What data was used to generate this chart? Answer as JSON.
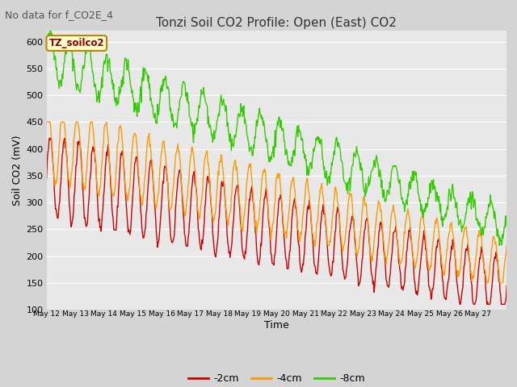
{
  "title": "Tonzi Soil CO2 Profile: Open (East) CO2",
  "subtitle": "No data for f_CO2E_4",
  "ylabel": "Soil CO2 (mV)",
  "xlabel": "Time",
  "watermark": "TZ_soilco2",
  "ylim": [
    100,
    620
  ],
  "yticks": [
    100,
    150,
    200,
    250,
    300,
    350,
    400,
    450,
    500,
    550,
    600
  ],
  "fig_bg": "#d4d4d4",
  "plot_bg": "#e8e8e8",
  "grid_color": "#ffffff",
  "line_colors": {
    "2cm": "#cc0000",
    "4cm": "#ff9900",
    "8cm": "#33cc00"
  },
  "line_width": 1.0,
  "x_tick_labels": [
    "May 12",
    "May 13",
    "May 14",
    "May 15",
    "May 16",
    "May 17",
    "May 18",
    "May 19",
    "May 20",
    "May 21",
    "May 22",
    "May 23",
    "May 24",
    "May 25",
    "May 26",
    "May 27"
  ],
  "title_fontsize": 11,
  "subtitle_fontsize": 9,
  "axis_label_fontsize": 9,
  "tick_fontsize": 8,
  "legend_fontsize": 9
}
